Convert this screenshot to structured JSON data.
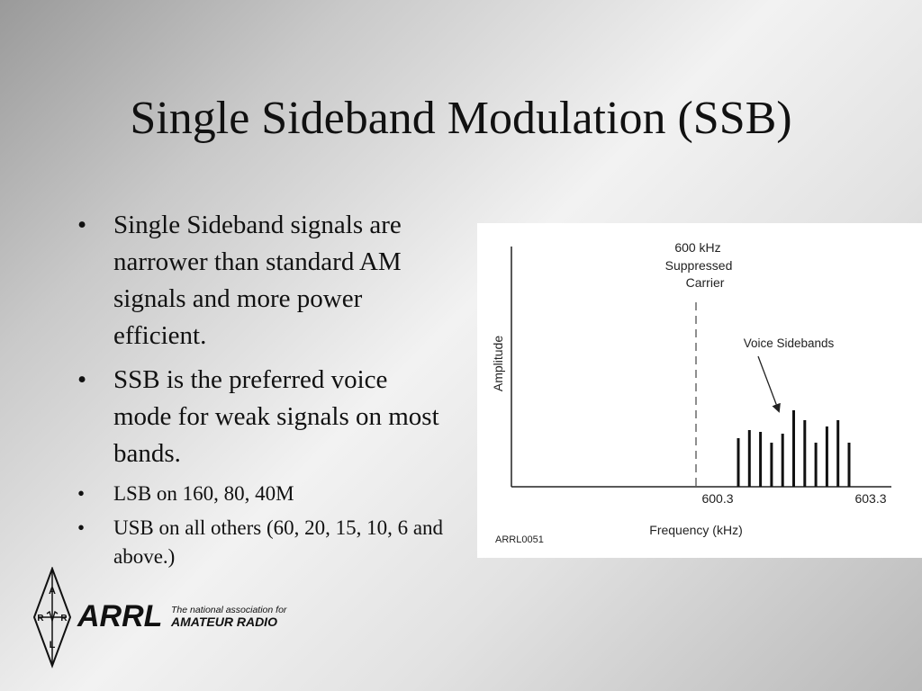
{
  "slide": {
    "title": "Single Sideband Modulation (SSB)",
    "bullets": [
      {
        "text": "Single Sideband signals are narrower than standard AM signals and more power efficient.",
        "level": "main"
      },
      {
        "text": "SSB is the preferred voice mode for weak signals on most bands.",
        "level": "main"
      },
      {
        "text": "LSB on 160, 80, 40M",
        "level": "sub"
      },
      {
        "text": "USB on all others (60, 20, 15, 10, 6 and above.)",
        "level": "sub"
      }
    ],
    "bullet_symbol": "•"
  },
  "figure": {
    "carrier_label": [
      "600 kHz",
      "Suppressed",
      "Carrier"
    ],
    "y_axis_label": "Amplitude",
    "x_axis_label": "Frequency (kHz)",
    "sideband_label": "Voice Sidebands",
    "tick_low": "600.3",
    "tick_high": "603.3",
    "figure_id": "ARRL0051",
    "sideband_relative_heights": [
      0.54,
      0.63,
      0.61,
      0.49,
      0.59,
      0.85,
      0.74,
      0.49,
      0.67,
      0.74,
      0.49
    ]
  },
  "logo": {
    "name": "ARRL",
    "tagline_1": "The national association for",
    "tagline_2": "AMATEUR RADIO",
    "emblem_letters": [
      "A",
      "R",
      "R",
      "L"
    ]
  }
}
